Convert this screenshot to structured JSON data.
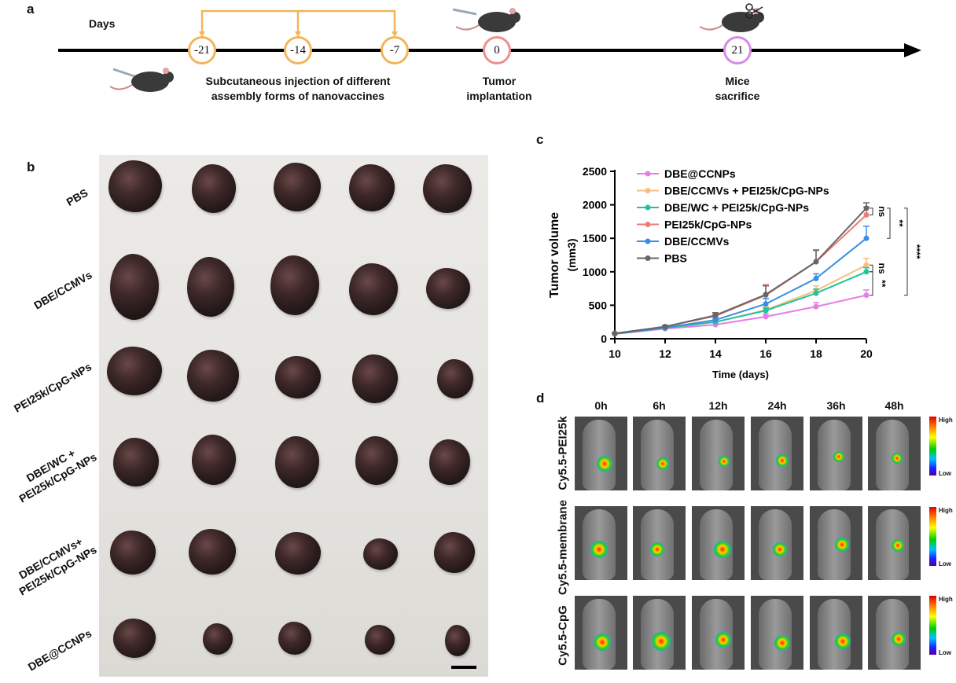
{
  "panel_a": {
    "letter": "a",
    "days_label": "Days",
    "timepoints": [
      "-21",
      "-14",
      "-7",
      "0",
      "21"
    ],
    "label_injection_1": "Subcutaneous injection of different",
    "label_injection_2": "assembly forms of nanovaccines",
    "label_tumor_1": "Tumor",
    "label_tumor_2": "implantation",
    "label_mice_1": "Mice",
    "label_mice_2": "sacrifice",
    "colors": {
      "vaccine": "#f2b55b",
      "tumor": "#ee8f8f",
      "sacrifice": "#d58ae8",
      "axis": "#000000"
    }
  },
  "panel_b": {
    "letter": "b",
    "rows": [
      {
        "label": "PBS"
      },
      {
        "label": "DBE/CCMVs"
      },
      {
        "label": "PEI25k/CpG-NPs"
      },
      {
        "label_1": "DBE/WC +",
        "label_2": "PEI25k/CpG-NPs"
      },
      {
        "label_1": "DBE/CCMVs+",
        "label_2": "PEI25k/CpG-NPs"
      },
      {
        "label": "DBE@CCNPs"
      }
    ]
  },
  "panel_c": {
    "letter": "c"
  },
  "chart_data": {
    "type": "line",
    "xlabel": "Time (days)",
    "ylabel": "Tumor volume",
    "ylabel_unit": "(mm3)",
    "x": [
      10,
      12,
      14,
      16,
      18,
      20
    ],
    "xlim": [
      10,
      20
    ],
    "ylim": [
      0,
      2500
    ],
    "yticks": [
      0,
      500,
      1000,
      1500,
      2000,
      2500
    ],
    "series": [
      {
        "name": "DBE@CCNPs",
        "color": "#e87de6",
        "values": [
          70,
          150,
          210,
          330,
          480,
          650
        ],
        "err": [
          10,
          20,
          30,
          40,
          60,
          80
        ]
      },
      {
        "name": "DBE/CCMVs + PEI25k/CpG-NPs",
        "color": "#f4c07e",
        "values": [
          75,
          160,
          250,
          430,
          720,
          1100
        ],
        "err": [
          10,
          20,
          30,
          50,
          70,
          100
        ]
      },
      {
        "name": "DBE/WC + PEI25k/CpG-NPs",
        "color": "#1fc49a",
        "values": [
          75,
          160,
          250,
          420,
          680,
          1000
        ],
        "err": [
          10,
          20,
          30,
          40,
          60,
          60
        ]
      },
      {
        "name": "PEI25k/CpG-NPs",
        "color": "#f07a74",
        "values": [
          80,
          180,
          340,
          650,
          1150,
          1850
        ],
        "err": [
          10,
          20,
          30,
          160,
          180,
          120
        ]
      },
      {
        "name": "DBE/CCMVs",
        "color": "#3a8de6",
        "values": [
          75,
          165,
          280,
          520,
          900,
          1500
        ],
        "err": [
          10,
          20,
          30,
          80,
          70,
          180
        ]
      },
      {
        "name": "PBS",
        "color": "#666666",
        "values": [
          80,
          180,
          350,
          660,
          1150,
          1950
        ],
        "err": [
          10,
          20,
          40,
          130,
          170,
          80
        ]
      }
    ],
    "annotations": [
      "ns",
      "**",
      "****",
      "ns",
      "**"
    ]
  },
  "panel_d": {
    "letter": "d",
    "times": [
      "0h",
      "6h",
      "12h",
      "24h",
      "36h",
      "48h"
    ],
    "rows": [
      "Cy5.5-PEI25k",
      "Cy5.5-membrane",
      "Cy5.5-CpG"
    ],
    "colorbar_high": "High",
    "colorbar_low": "Low"
  }
}
